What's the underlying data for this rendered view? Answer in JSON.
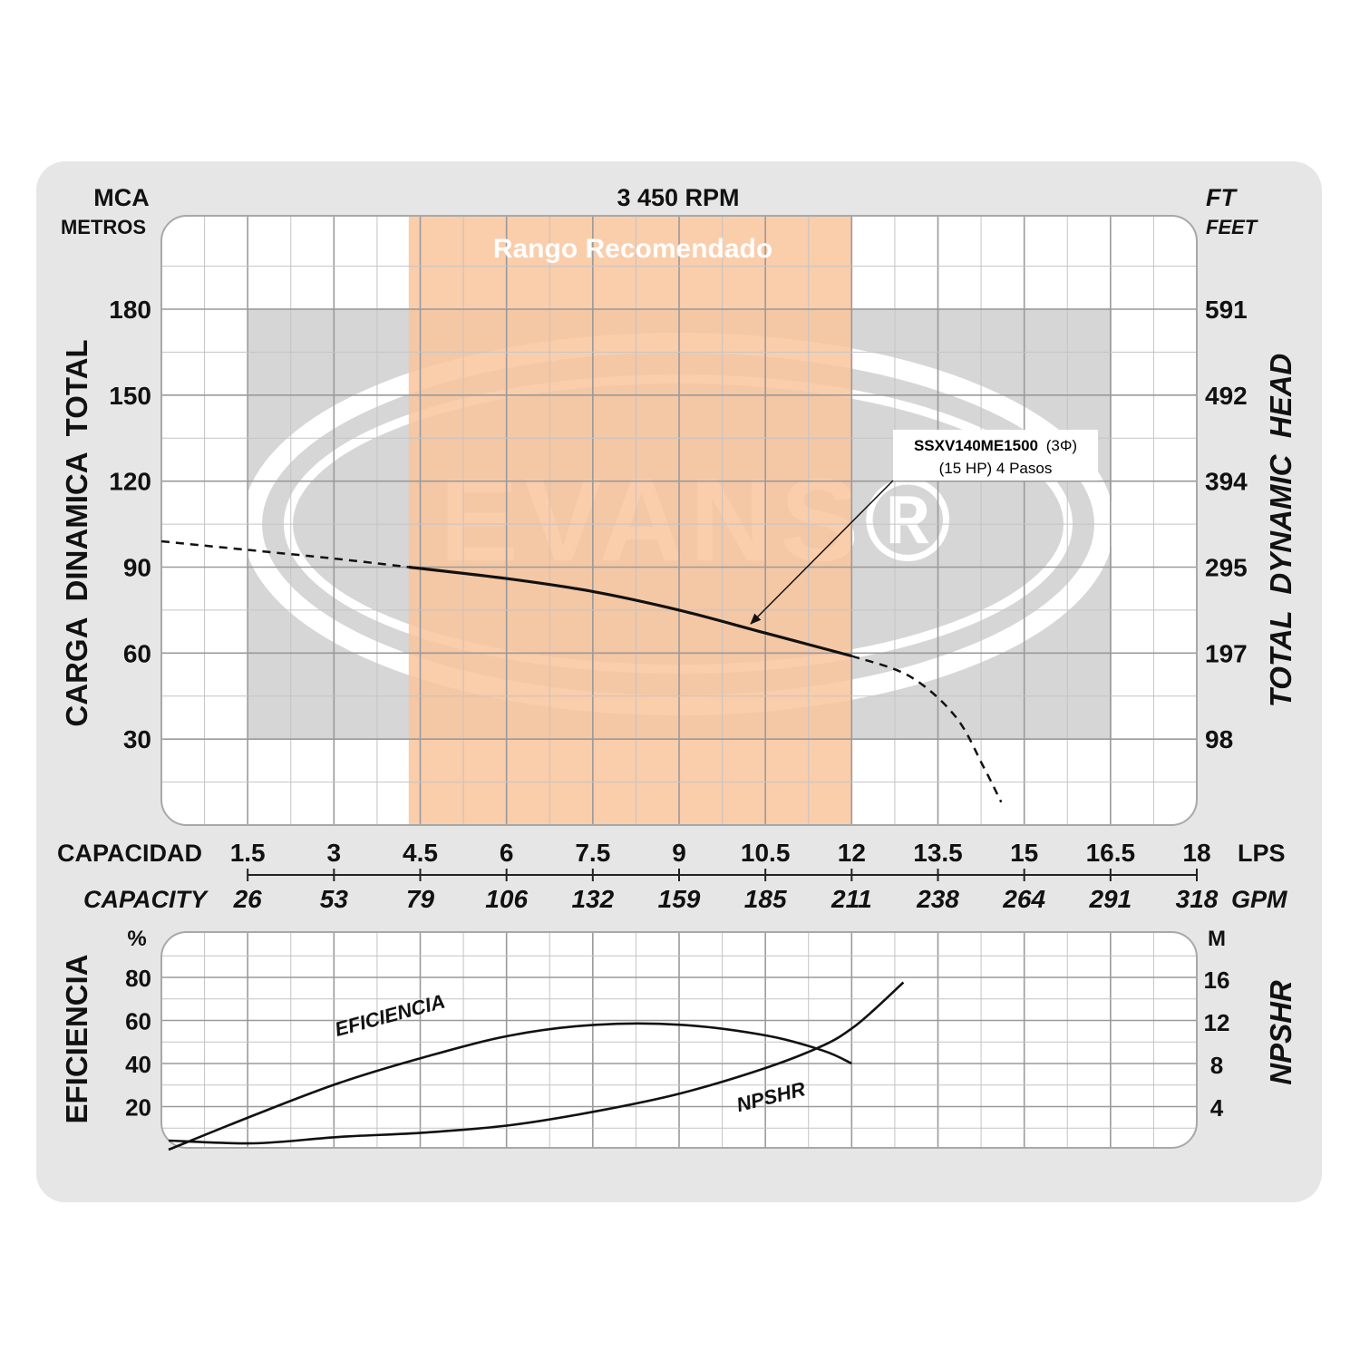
{
  "chart_data": [
    {
      "type": "line",
      "title": "3 450 RPM",
      "y_left_unit": "MCA",
      "y_left_unit_sub": "METROS",
      "y_right_unit": "FT",
      "y_right_unit_sub": "FEET",
      "ylabel_left": "CARGA  DINAMICA  TOTAL",
      "ylabel_right": "TOTAL  DYNAMIC  HEAD",
      "yticks_left": [
        "180",
        "150",
        "120",
        "90",
        "60",
        "30"
      ],
      "yticks_right": [
        "591",
        "492",
        "394",
        "295",
        "197",
        "98"
      ],
      "ylim": [
        0,
        210
      ],
      "xlim": [
        0,
        18
      ],
      "xlabel": "CAPACIDAD",
      "xlabel_en": "CAPACITY",
      "x_unit_lps": "LPS",
      "x_unit_gpm": "GPM",
      "xticks_lps": [
        "1.5",
        "3",
        "4.5",
        "6",
        "7.5",
        "9",
        "10.5",
        "12",
        "13.5",
        "15",
        "16.5",
        "18"
      ],
      "xticks_gpm": [
        "26",
        "53",
        "79",
        "106",
        "132",
        "159",
        "185",
        "211",
        "238",
        "264",
        "291",
        "318"
      ],
      "recommended_range": {
        "label": "Rango Recomendado",
        "x": [
          4.3,
          12.0
        ],
        "color": "#f9c49c"
      },
      "watermark": "EVANS®",
      "annotation": {
        "model": "SSXV140ME1500",
        "phase": "(3Φ)",
        "detail": "(15 HP) 4 Pasos",
        "x": 9.8,
        "y": 68
      },
      "series": [
        {
          "name": "SSXV140ME1500",
          "x": [
            0.0,
            1.5,
            3.0,
            4.3,
            6.0,
            7.5,
            9.0,
            10.5,
            12.0,
            13.0,
            13.8,
            14.3,
            14.6
          ],
          "y": [
            99,
            96,
            93,
            90,
            86,
            81.5,
            75,
            67,
            59,
            52,
            38,
            20,
            8
          ],
          "dashed_below_x": 4.3,
          "dashed_above_x": 12.0
        }
      ]
    },
    {
      "type": "line",
      "ylabel_left": "EFICIENCIA",
      "ylabel_right": "NPSHR",
      "y_left_unit": "%",
      "y_right_unit": "M",
      "yticks_left": [
        "80",
        "60",
        "40",
        "20"
      ],
      "yticks_right": [
        "16",
        "12",
        "8",
        "4"
      ],
      "ylim_left": [
        0,
        100
      ],
      "ylim_right": [
        0,
        20
      ],
      "xlim": [
        0,
        18
      ],
      "series": [
        {
          "name": "EFICIENCIA",
          "axis": "left",
          "x": [
            0.0,
            1.5,
            3.0,
            4.5,
            6.0,
            7.5,
            9.0,
            10.5,
            11.5,
            12.0
          ],
          "y": [
            0,
            16,
            31,
            43,
            53,
            58,
            58,
            53,
            46,
            40
          ]
        },
        {
          "name": "NPSHR",
          "axis": "right",
          "x": [
            0.0,
            1.5,
            3.0,
            4.5,
            6.0,
            7.5,
            9.0,
            10.5,
            11.5,
            12.0,
            12.4,
            12.9
          ],
          "y": [
            0,
            0.6,
            1.2,
            1.6,
            2.3,
            3.6,
            5.3,
            7.7,
            9.8,
            11.4,
            13.2,
            15.7
          ]
        }
      ]
    }
  ]
}
